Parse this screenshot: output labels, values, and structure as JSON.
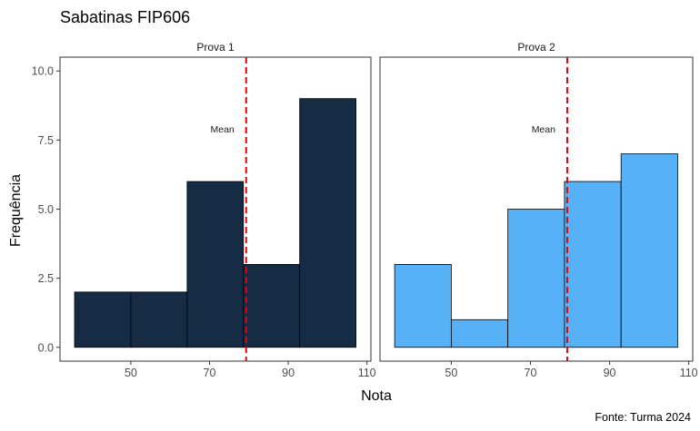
{
  "chart_data": {
    "type": "bar",
    "title": "Sabatinas FIP606",
    "xlabel": "Nota",
    "ylabel": "Frequência",
    "caption": "Fonte: Turma 2024",
    "xlim": [
      32,
      111
    ],
    "ylim": [
      -0.5,
      10.5
    ],
    "xticks": [
      "50",
      "70",
      "90",
      "110"
    ],
    "yticks": [
      "0.0",
      "2.5",
      "5.0",
      "7.5",
      "10.0"
    ],
    "grid": false,
    "bin_edges": [
      35.7,
      50,
      64.3,
      78.6,
      92.9,
      107.2
    ],
    "panels": [
      {
        "name": "Prova 1",
        "counts": [
          2,
          2,
          6,
          3,
          9
        ],
        "mean": 79.3,
        "mean_label": "Mean",
        "color": "#162c44"
      },
      {
        "name": "Prova 2",
        "counts": [
          3,
          1,
          5,
          6,
          7
        ],
        "mean": 79.3,
        "mean_label": "Mean",
        "color": "#56b1f7"
      }
    ],
    "mean_line_color": "#e8000b"
  }
}
